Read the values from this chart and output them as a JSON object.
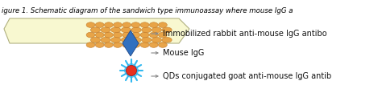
{
  "figsize": [
    4.74,
    1.06
  ],
  "dpi": 100,
  "bg_color": "#ffffff",
  "caption": "igure 1. Schematic diagram of the sandwich type immunoassay where mouse IgG a",
  "caption_fontsize": 6.2,
  "label_qd": "QDs conjugated goat anti-mouse IgG antib",
  "label_mouse": "Mouse IgG",
  "label_immob": "Immobilized rabbit anti-mouse IgG antibo",
  "label_fontsize": 7.0,
  "plate_color": "#f8f8d0",
  "plate_edge_color": "#b0b080",
  "antibody_color": "#e8a040",
  "antibody_edge_color": "#c07828",
  "qd_snowflake_color": "#30b8f0",
  "qd_dot_color": "#e83020",
  "diamond_color": "#3070c0",
  "diamond_edge_color": "#204888",
  "arrow_color": "#888888",
  "label_color": "#111111"
}
